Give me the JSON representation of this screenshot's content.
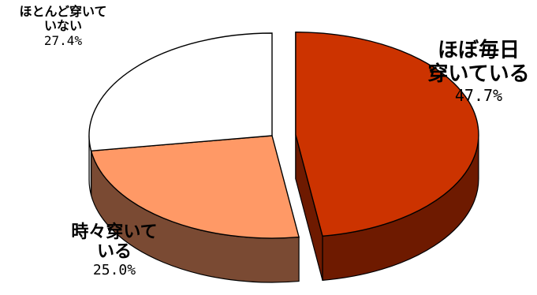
{
  "chart_data": {
    "type": "pie",
    "style": "3d-exploded",
    "slices": [
      {
        "label": "ほぼ毎日穿いている",
        "name_lines": [
          "ほぼ毎日",
          "穿いている"
        ],
        "value": 47.7,
        "value_label": "47.7%",
        "color": "#cc3300",
        "side_color": "#6e1a00",
        "exploded": true
      },
      {
        "label": "時々穿いている",
        "name_lines": [
          "時々穿いて",
          "いる"
        ],
        "value": 25.0,
        "value_label": "25.0%",
        "color": "#ff9966",
        "side_color": "#7a4a33",
        "exploded": false
      },
      {
        "label": "ほとんど穿いていない",
        "name_lines": [
          "ほとんど穿いて",
          "いない"
        ],
        "value": 27.4,
        "value_label": "27.4%",
        "color": "#ffffff",
        "side_color": "#d9d9d9",
        "exploded": false
      }
    ]
  }
}
